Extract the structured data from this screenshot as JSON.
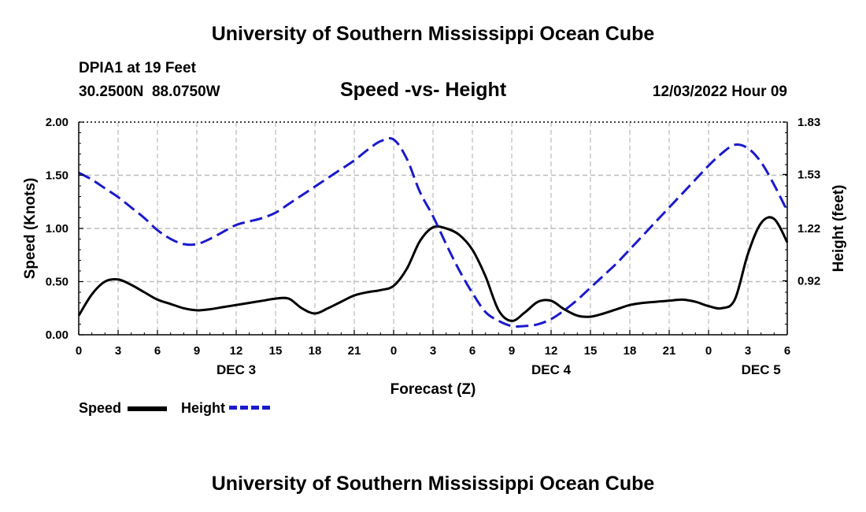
{
  "header": {
    "title": "University of Southern Mississippi Ocean Cube",
    "station": "DPIA1 at 19 Feet",
    "coords": "30.2500N  88.0750W",
    "datetime": "12/03/2022 Hour 09"
  },
  "footer": {
    "title": "University of Southern Mississippi Ocean Cube"
  },
  "legend": {
    "speed_label": "Speed",
    "height_label": "Height"
  },
  "colors": {
    "speed": "#000000",
    "height": "#1a1acc",
    "grid": "#bbbbbb"
  },
  "chart_data": {
    "type": "line",
    "title": "Speed -vs- Height",
    "xlabel": "Forecast (Z)",
    "ylabel": "Speed (Knots)",
    "y2label": "Height (feet)",
    "xlim": [
      0,
      54
    ],
    "ylim": [
      0,
      2.0
    ],
    "y2lim": [
      0.61,
      1.83
    ],
    "x_ticks": [
      0,
      3,
      6,
      9,
      12,
      15,
      18,
      21,
      24,
      27,
      30,
      33,
      36,
      39,
      42,
      45,
      48,
      51,
      54
    ],
    "x_tick_labels": [
      "0",
      "3",
      "6",
      "9",
      "12",
      "15",
      "18",
      "21",
      "0",
      "3",
      "6",
      "9",
      "12",
      "15",
      "18",
      "21",
      "0",
      "3",
      "6"
    ],
    "y_ticks": [
      0.0,
      0.5,
      1.0,
      1.5,
      2.0
    ],
    "y_tick_labels": [
      "0.00",
      "0.50",
      "1.00",
      "1.50",
      "2.00"
    ],
    "y2_ticks": [
      0.92,
      1.22,
      1.53,
      1.83
    ],
    "y2_tick_labels": [
      "0.92",
      "1.22",
      "1.53",
      "1.83"
    ],
    "day_labels": [
      {
        "x": 12,
        "label": "DEC 3"
      },
      {
        "x": 36,
        "label": "DEC 4"
      },
      {
        "x": 52,
        "label": "DEC 5"
      }
    ],
    "grid": true,
    "series": [
      {
        "name": "Speed",
        "axis": "left",
        "style": "solid",
        "x": [
          0,
          1,
          2,
          3,
          4,
          5,
          6,
          7,
          8,
          9,
          10,
          11,
          12,
          13,
          14,
          15,
          16,
          17,
          18,
          19,
          20,
          21,
          22,
          23,
          24,
          25,
          26,
          27,
          28,
          29,
          30,
          31,
          32,
          33,
          34,
          35,
          36,
          37,
          38,
          39,
          40,
          41,
          42,
          43,
          44,
          45,
          46,
          47,
          48,
          49,
          50,
          51,
          52,
          53,
          54
        ],
        "values": [
          0.18,
          0.38,
          0.5,
          0.52,
          0.47,
          0.4,
          0.33,
          0.29,
          0.25,
          0.23,
          0.24,
          0.26,
          0.28,
          0.3,
          0.32,
          0.34,
          0.34,
          0.25,
          0.2,
          0.25,
          0.31,
          0.37,
          0.4,
          0.42,
          0.46,
          0.62,
          0.88,
          1.01,
          1.0,
          0.94,
          0.8,
          0.55,
          0.23,
          0.13,
          0.21,
          0.31,
          0.32,
          0.24,
          0.18,
          0.17,
          0.2,
          0.24,
          0.28,
          0.3,
          0.31,
          0.32,
          0.33,
          0.31,
          0.27,
          0.25,
          0.33,
          0.76,
          1.05,
          1.09,
          0.87
        ]
      },
      {
        "name": "Height",
        "axis": "right",
        "style": "dashed",
        "x": [
          0,
          1,
          2,
          3,
          4,
          5,
          6,
          7,
          8,
          9,
          10,
          11,
          12,
          13,
          14,
          15,
          16,
          17,
          18,
          19,
          20,
          21,
          22,
          23,
          24,
          25,
          26,
          27,
          28,
          29,
          30,
          31,
          32,
          33,
          34,
          35,
          36,
          37,
          38,
          39,
          40,
          41,
          42,
          43,
          44,
          45,
          46,
          47,
          48,
          49,
          50,
          51,
          52,
          53,
          54
        ],
        "values": [
          1.54,
          1.5,
          1.45,
          1.4,
          1.34,
          1.28,
          1.21,
          1.16,
          1.13,
          1.13,
          1.16,
          1.2,
          1.24,
          1.26,
          1.28,
          1.31,
          1.36,
          1.41,
          1.46,
          1.51,
          1.56,
          1.61,
          1.67,
          1.72,
          1.73,
          1.62,
          1.43,
          1.29,
          1.13,
          0.98,
          0.85,
          0.74,
          0.69,
          0.66,
          0.66,
          0.67,
          0.7,
          0.75,
          0.81,
          0.88,
          0.95,
          1.02,
          1.1,
          1.18,
          1.26,
          1.34,
          1.42,
          1.5,
          1.58,
          1.65,
          1.7,
          1.68,
          1.6,
          1.47,
          1.32
        ]
      }
    ]
  }
}
